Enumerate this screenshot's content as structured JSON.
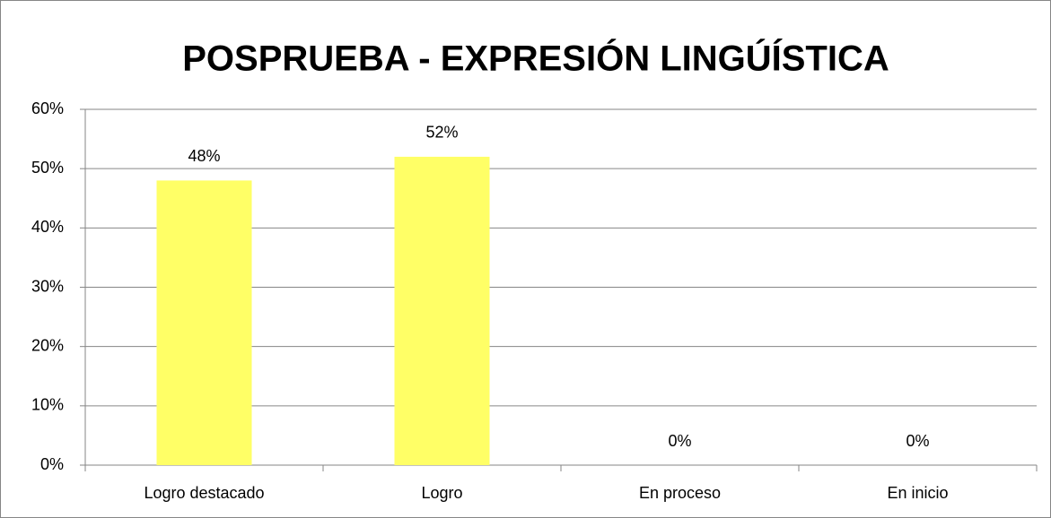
{
  "chart_data": {
    "type": "bar",
    "title": "POSPRUEBA - EXPRESIÓN LINGÚÍSTICA",
    "categories": [
      "Logro destacado",
      "Logro",
      "En proceso",
      "En inicio"
    ],
    "values": [
      48,
      52,
      0,
      0
    ],
    "value_labels": [
      "48%",
      "52%",
      "0%",
      "0%"
    ],
    "color": "#ffff66",
    "ylim": [
      0,
      60
    ],
    "yticks": [
      {
        "value": 0,
        "label": "0%"
      },
      {
        "value": 10,
        "label": "10%"
      },
      {
        "value": 20,
        "label": "20%"
      },
      {
        "value": 30,
        "label": "30%"
      },
      {
        "value": 40,
        "label": "40%"
      },
      {
        "value": 50,
        "label": "50%"
      },
      {
        "value": 60,
        "label": "60%"
      }
    ],
    "grid": true
  }
}
